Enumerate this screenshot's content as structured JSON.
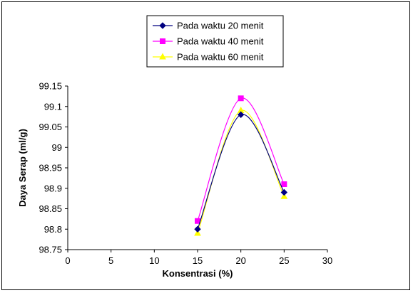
{
  "chart_data": {
    "type": "line",
    "smoothed": true,
    "xlabel": "Konsentrasi (%)",
    "ylabel": "Daya Serap (ml/g)",
    "xlim": [
      0,
      30
    ],
    "ylim": [
      98.75,
      99.15
    ],
    "x_ticks": [
      "0",
      "5",
      "10",
      "15",
      "20",
      "25",
      "30"
    ],
    "y_ticks": [
      "98.75",
      "98.8",
      "98.85",
      "98.9",
      "98.95",
      "99",
      "99.05",
      "99.1",
      "99.15"
    ],
    "grid": false,
    "legend_position": "top-center",
    "x": [
      15,
      20,
      25
    ],
    "series": [
      {
        "name": "Pada waktu 20 menit",
        "values": [
          98.8,
          99.08,
          98.89
        ],
        "color": "#000080",
        "marker": "diamond"
      },
      {
        "name": "Pada waktu 40 menit",
        "values": [
          98.82,
          99.12,
          98.91
        ],
        "color": "#FF00FF",
        "marker": "square"
      },
      {
        "name": "Pada waktu 60 menit",
        "values": [
          98.79,
          99.09,
          98.88
        ],
        "color": "#FFFF00",
        "marker": "triangle"
      }
    ]
  }
}
